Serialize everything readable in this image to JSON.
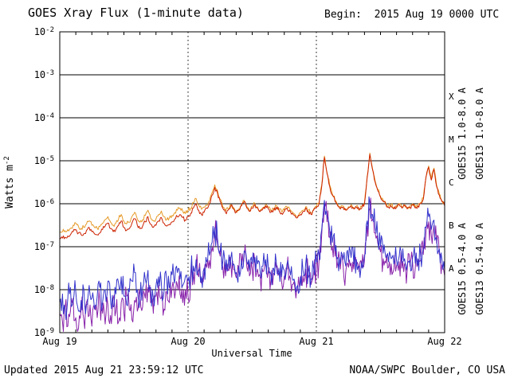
{
  "header": {
    "title": "GOES Xray Flux (1-minute data)",
    "begin_label": "Begin:  2015 Aug 19 0000 UTC"
  },
  "footer": {
    "updated": "Updated 2015 Aug 21 23:59:12 UTC",
    "source": "NOAA/SWPC Boulder, CO USA"
  },
  "chart_data": {
    "type": "line",
    "title": "GOES Xray Flux (1-minute data)",
    "xlabel": "Universal Time",
    "ylabel": {
      "text": "Watts m",
      "superscript": "-2"
    },
    "x_axis": {
      "tick_labels": [
        "Aug 19",
        "Aug 20",
        "Aug 21",
        "Aug 22"
      ],
      "tick_hours": [
        0,
        24,
        48,
        72
      ],
      "minor_tick_interval_hours": 3,
      "xlim_hours": [
        0,
        72
      ]
    },
    "y_axis": {
      "scale": "log",
      "tick_exponents": [
        -2,
        -3,
        -4,
        -5,
        -6,
        -7,
        -8,
        -9
      ],
      "ylim_exponents": [
        -9,
        -2
      ]
    },
    "flare_classes": [
      "X",
      "M",
      "C",
      "B",
      "A"
    ],
    "x_start_hours": 0,
    "x_step_hours": 0.5,
    "series": [
      {
        "name": "GOES13 0.5-4.0 A",
        "color": "#8822aa",
        "jitter": 0.38,
        "log10_flux": [
          -8.55,
          -8.75,
          -8.4,
          -8.85,
          -8.5,
          -8.2,
          -8.65,
          -8.9,
          -8.45,
          -8.7,
          -8.3,
          -8.6,
          -8.85,
          -8.4,
          -8.65,
          -8.25,
          -8.55,
          -8.8,
          -8.35,
          -8.6,
          -8.2,
          -8.5,
          -8.75,
          -8.3,
          -8.55,
          -8.15,
          -8.45,
          -8.7,
          -8.25,
          -8.5,
          -8.1,
          -8.4,
          -8.2,
          -7.95,
          -8.3,
          -8.55,
          -8.15,
          -7.9,
          -8.2,
          -8.45,
          -8.05,
          -8.3,
          -7.95,
          -8.2,
          -7.9,
          -8.1,
          -8.3,
          -8.0,
          -8.15,
          -7.75,
          -7.6,
          -7.45,
          -7.7,
          -7.85,
          -7.62,
          -7.48,
          -7.32,
          -7.02,
          -6.68,
          -6.92,
          -7.22,
          -7.48,
          -7.68,
          -7.55,
          -7.38,
          -7.52,
          -7.72,
          -7.58,
          -7.42,
          -7.22,
          -7.48,
          -7.68,
          -7.52,
          -7.38,
          -7.52,
          -7.72,
          -7.58,
          -7.42,
          -7.58,
          -7.78,
          -7.62,
          -7.48,
          -7.62,
          -7.82,
          -7.68,
          -7.52,
          -7.68,
          -7.88,
          -7.98,
          -8.02,
          -7.82,
          -7.68,
          -7.52,
          -7.72,
          -7.88,
          -7.62,
          -7.48,
          -7.32,
          -6.72,
          -6.05,
          -6.42,
          -6.78,
          -7.02,
          -7.22,
          -7.38,
          -7.52,
          -7.42,
          -7.58,
          -7.48,
          -7.38,
          -7.52,
          -7.42,
          -7.58,
          -7.48,
          -7.32,
          -6.52,
          -6.1,
          -6.38,
          -6.68,
          -6.92,
          -7.12,
          -7.28,
          -7.38,
          -7.48,
          -7.4,
          -7.52,
          -7.45,
          -7.35,
          -7.5,
          -7.4,
          -7.55,
          -7.45,
          -7.38,
          -7.5,
          -7.4,
          -7.32,
          -7.18,
          -6.68,
          -6.42,
          -6.72,
          -6.5,
          -6.92,
          -7.18,
          -7.42,
          -7.68
        ]
      },
      {
        "name": "GOES15 0.5-4.0 A",
        "color": "#3333cc",
        "jitter": 0.35,
        "log10_flux": [
          -8.3,
          -8.1,
          -8.45,
          -8.2,
          -7.95,
          -8.3,
          -8.05,
          -8.5,
          -8.25,
          -8.0,
          -8.35,
          -7.9,
          -8.2,
          -8.45,
          -8.15,
          -7.95,
          -8.3,
          -8.0,
          -7.8,
          -8.25,
          -8.4,
          -8.1,
          -7.85,
          -7.7,
          -8.15,
          -8.35,
          -8.05,
          -7.8,
          -7.6,
          -8.0,
          -8.25,
          -7.95,
          -7.75,
          -7.55,
          -7.95,
          -8.2,
          -7.9,
          -7.7,
          -7.85,
          -8.05,
          -7.75,
          -7.95,
          -7.65,
          -7.85,
          -7.6,
          -7.75,
          -7.9,
          -7.7,
          -7.8,
          -7.6,
          -7.45,
          -7.3,
          -7.55,
          -7.7,
          -7.5,
          -7.35,
          -7.2,
          -6.9,
          -6.55,
          -6.8,
          -7.1,
          -7.35,
          -7.55,
          -7.45,
          -7.25,
          -7.4,
          -7.6,
          -7.45,
          -7.3,
          -7.1,
          -7.35,
          -7.55,
          -7.4,
          -7.25,
          -7.4,
          -7.6,
          -7.45,
          -7.3,
          -7.45,
          -7.65,
          -7.5,
          -7.35,
          -7.5,
          -7.7,
          -7.55,
          -7.4,
          -7.55,
          -7.75,
          -7.85,
          -7.9,
          -7.7,
          -7.55,
          -7.4,
          -7.6,
          -7.75,
          -7.5,
          -7.35,
          -7.2,
          -6.6,
          -5.92,
          -6.3,
          -6.65,
          -6.9,
          -7.1,
          -7.25,
          -7.4,
          -7.3,
          -7.45,
          -7.35,
          -7.25,
          -7.4,
          -7.3,
          -7.45,
          -7.35,
          -7.2,
          -6.4,
          -5.98,
          -6.25,
          -6.55,
          -6.8,
          -7.0,
          -7.15,
          -7.25,
          -7.35,
          -7.28,
          -7.4,
          -7.32,
          -7.22,
          -7.38,
          -7.28,
          -7.42,
          -7.32,
          -7.25,
          -7.38,
          -7.28,
          -7.2,
          -7.05,
          -6.55,
          -6.3,
          -6.6,
          -6.38,
          -6.8,
          -7.05,
          -7.3,
          -7.55
        ]
      },
      {
        "name": "GOES13 1.0-8.0 A",
        "color": "#e69a28",
        "jitter": 0.05,
        "log10_flux": [
          -6.67,
          -6.65,
          -6.63,
          -6.6,
          -6.57,
          -6.5,
          -6.45,
          -6.53,
          -6.57,
          -6.55,
          -6.47,
          -6.4,
          -6.5,
          -6.55,
          -6.57,
          -6.53,
          -6.45,
          -6.37,
          -6.3,
          -6.43,
          -6.5,
          -6.45,
          -6.35,
          -6.25,
          -6.4,
          -6.47,
          -6.43,
          -6.3,
          -6.2,
          -6.35,
          -6.43,
          -6.37,
          -6.27,
          -6.15,
          -6.33,
          -6.4,
          -6.35,
          -6.25,
          -6.17,
          -6.3,
          -6.37,
          -6.33,
          -6.27,
          -6.21,
          -6.15,
          -6.1,
          -6.17,
          -6.23,
          -6.15,
          -6.1,
          -5.98,
          -5.88,
          -6.03,
          -6.13,
          -6.08,
          -6.04,
          -5.94,
          -5.74,
          -5.56,
          -5.69,
          -5.89,
          -6.07,
          -6.17,
          -6.12,
          -6.02,
          -6.09,
          -6.17,
          -6.12,
          -6.02,
          -5.92,
          -6.07,
          -6.15,
          -6.07,
          -5.99,
          -6.07,
          -6.15,
          -6.09,
          -6.02,
          -6.09,
          -6.17,
          -6.12,
          -6.05,
          -6.12,
          -6.19,
          -6.15,
          -6.07,
          -6.12,
          -6.19,
          -6.25,
          -6.29,
          -6.22,
          -6.15,
          -6.07,
          -6.15,
          -6.22,
          -6.12,
          -6.07,
          -5.97,
          -5.57,
          -4.89,
          -5.27,
          -5.57,
          -5.77,
          -5.92,
          -6.02,
          -6.09,
          -6.05,
          -6.12,
          -6.07,
          -6.02,
          -6.09,
          -6.05,
          -6.12,
          -6.07,
          -5.97,
          -5.37,
          -4.82,
          -5.17,
          -5.47,
          -5.67,
          -5.82,
          -5.92,
          -5.99,
          -6.05,
          -6.02,
          -6.09,
          -6.05,
          -5.99,
          -6.07,
          -6.02,
          -6.09,
          -6.05,
          -6.0,
          -6.07,
          -6.02,
          -5.97,
          -5.87,
          -5.37,
          -5.12,
          -5.42,
          -5.17,
          -5.57,
          -5.77,
          -5.92,
          -6.02
        ]
      },
      {
        "name": "GOES15 1.0-8.0 A",
        "color": "#cc2200",
        "jitter": 0.05,
        "log10_flux": [
          -6.82,
          -6.8,
          -6.78,
          -6.75,
          -6.72,
          -6.65,
          -6.6,
          -6.68,
          -6.72,
          -6.7,
          -6.62,
          -6.55,
          -6.65,
          -6.7,
          -6.72,
          -6.68,
          -6.6,
          -6.52,
          -6.45,
          -6.58,
          -6.65,
          -6.6,
          -6.5,
          -6.4,
          -6.55,
          -6.62,
          -6.58,
          -6.45,
          -6.35,
          -6.5,
          -6.58,
          -6.52,
          -6.42,
          -6.3,
          -6.48,
          -6.55,
          -6.5,
          -6.4,
          -6.32,
          -6.45,
          -6.52,
          -6.48,
          -6.42,
          -6.36,
          -6.3,
          -6.25,
          -6.32,
          -6.38,
          -6.3,
          -6.22,
          -6.1,
          -6.0,
          -6.15,
          -6.25,
          -6.2,
          -6.1,
          -6.0,
          -5.8,
          -5.62,
          -5.75,
          -5.95,
          -6.1,
          -6.2,
          -6.15,
          -6.05,
          -6.12,
          -6.2,
          -6.15,
          -6.05,
          -5.95,
          -6.1,
          -6.18,
          -6.1,
          -6.02,
          -6.1,
          -6.18,
          -6.12,
          -6.05,
          -6.12,
          -6.2,
          -6.15,
          -6.08,
          -6.15,
          -6.22,
          -6.18,
          -6.1,
          -6.15,
          -6.22,
          -6.28,
          -6.32,
          -6.25,
          -6.18,
          -6.1,
          -6.18,
          -6.25,
          -6.15,
          -6.1,
          -6.0,
          -5.6,
          -4.92,
          -5.3,
          -5.6,
          -5.8,
          -5.95,
          -6.05,
          -6.12,
          -6.08,
          -6.15,
          -6.1,
          -6.05,
          -6.12,
          -6.08,
          -6.15,
          -6.1,
          -6.0,
          -5.4,
          -4.85,
          -5.2,
          -5.5,
          -5.7,
          -5.85,
          -5.95,
          -6.02,
          -6.08,
          -6.05,
          -6.12,
          -6.08,
          -6.02,
          -6.1,
          -6.05,
          -6.12,
          -6.08,
          -6.03,
          -6.1,
          -6.05,
          -6.0,
          -5.9,
          -5.4,
          -5.15,
          -5.45,
          -5.2,
          -5.6,
          -5.8,
          -5.95,
          -6.05
        ]
      }
    ]
  }
}
